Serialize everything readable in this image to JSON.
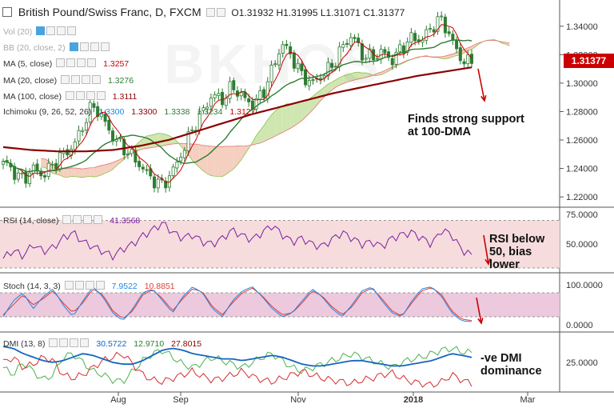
{
  "header": {
    "title": "British Pound/Swiss Franc, D, FXCM",
    "ohlc": "O1.31932  H1.31995  L1.31071  C1.31377"
  },
  "last_price": "1.31377",
  "indicators": {
    "vol": {
      "label": "Vol (20)"
    },
    "bb": {
      "label": "BB (20, close, 2)"
    },
    "ma5": {
      "label": "MA (5, close)",
      "value": "1.3257",
      "color": "#cc0000"
    },
    "ma20": {
      "label": "MA (20, close)",
      "value": "1.3276",
      "color": "#2e7d32"
    },
    "ma100": {
      "label": "MA (100, close)",
      "value": "1.3111",
      "color": "#8b0000"
    },
    "ichimoku": {
      "label": "Ichimoku (9, 26, 52, 26)",
      "v1": "1.3300",
      "v2": "1.3300",
      "v3": "1.3338",
      "v4": "1.3234",
      "v5": "1.3127"
    },
    "rsi": {
      "label": "RSI (14, close)",
      "value": "41.3568"
    },
    "stoch": {
      "label": "Stoch (14, 3, 3)",
      "k": "7.9522",
      "d": "10.8851"
    },
    "dmi": {
      "label": "DMI (13, 8)",
      "plus": "30.5722",
      "minus": "12.9710",
      "adx": "27.8015"
    }
  },
  "annotations": {
    "support": "Finds strong support at 100-DMA",
    "rsi": "RSI below 50, bias lower",
    "dmi": "-ve DMI dominance"
  },
  "watermark": "BKHOS",
  "colors": {
    "bull": "#2e7d32",
    "bear": "#2e7d32",
    "ma5": "#cc0000",
    "ma20": "#2e7d32",
    "ma100": "#8b0000",
    "cloud_green": "#cfe6b0",
    "cloud_red": "#f5cfc0",
    "rsi": "#7b1fa2",
    "stoch_k": "#1e88e5",
    "stoch_d": "#e53935",
    "dmi_plus": "#4caf50",
    "dmi_minus": "#d32f2f",
    "adx": "#1565c0",
    "arrow": "#cc0000"
  },
  "chart_data": [
    {
      "type": "candlestick",
      "title": "British Pound/Swiss Franc, D, FXCM",
      "x_ticks": [
        "Aug",
        "Sep",
        "Nov",
        "2018",
        "Mar"
      ],
      "y_ticks": [
        "1.34000",
        "1.32000",
        "1.30000",
        "1.28000",
        "1.26000",
        "1.24000",
        "1.22000"
      ],
      "ylim": [
        1.215,
        1.35
      ],
      "close_path": [
        1.245,
        1.238,
        1.232,
        1.24,
        1.235,
        1.243,
        1.25,
        1.255,
        1.27,
        1.285,
        1.275,
        1.262,
        1.255,
        1.248,
        1.24,
        1.232,
        1.228,
        1.238,
        1.252,
        1.268,
        1.28,
        1.292,
        1.288,
        1.298,
        1.29,
        1.285,
        1.292,
        1.31,
        1.328,
        1.318,
        1.305,
        1.3,
        1.306,
        1.312,
        1.325,
        1.334,
        1.32,
        1.318,
        1.322,
        1.316,
        1.325,
        1.332,
        1.33,
        1.34,
        1.345,
        1.33,
        1.316,
        1.3138
      ],
      "ma100_path": [
        1.255,
        1.253,
        1.252,
        1.252,
        1.253,
        1.256,
        1.26,
        1.266,
        1.272,
        1.278,
        1.283,
        1.288,
        1.293,
        1.297,
        1.301,
        1.305,
        1.308,
        1.3111
      ]
    },
    {
      "type": "line",
      "title": "RSI (14, close)",
      "y_ticks": [
        "75.0000",
        "50.0000"
      ],
      "ylim": [
        30,
        75
      ],
      "values": [
        38,
        45,
        40,
        50,
        44,
        47,
        55,
        60,
        52,
        48,
        44,
        40,
        46,
        50,
        57,
        62,
        68,
        60,
        55,
        58,
        52,
        50,
        55,
        62,
        57,
        54,
        60,
        66,
        58,
        52,
        55,
        50,
        48,
        54,
        60,
        55,
        50,
        52,
        48,
        55,
        58,
        60,
        55,
        50,
        62,
        58,
        45,
        41.3568
      ]
    },
    {
      "type": "line",
      "title": "Stoch (14, 3, 3)",
      "y_ticks": [
        "100.0000",
        "0.0000"
      ],
      "ylim": [
        0,
        100
      ],
      "series": [
        {
          "name": "%K",
          "values": [
            20,
            60,
            80,
            40,
            70,
            90,
            50,
            20,
            60,
            95,
            70,
            30,
            10,
            40,
            80,
            90,
            60,
            30,
            70,
            95,
            80,
            40,
            20,
            60,
            85,
            95,
            70,
            40,
            20,
            30,
            60,
            90,
            70,
            40,
            20,
            50,
            85,
            95,
            60,
            30,
            20,
            60,
            90,
            95,
            70,
            30,
            10,
            7.9522
          ]
        },
        {
          "name": "%D",
          "values": [
            25,
            50,
            75,
            50,
            65,
            85,
            55,
            30,
            55,
            90,
            75,
            35,
            15,
            35,
            75,
            88,
            65,
            35,
            65,
            90,
            82,
            45,
            25,
            55,
            80,
            92,
            72,
            45,
            25,
            30,
            55,
            85,
            72,
            45,
            25,
            45,
            80,
            92,
            65,
            35,
            22,
            55,
            85,
            93,
            75,
            35,
            14,
            10.8851
          ]
        }
      ]
    },
    {
      "type": "line",
      "title": "DMI (13, 8)",
      "y_ticks": [
        "25.0000"
      ],
      "ylim": [
        10,
        40
      ],
      "series": [
        {
          "name": "+DI",
          "values": [
            22,
            18,
            25,
            20,
            15,
            18,
            28,
            30,
            25,
            20,
            18,
            15,
            14,
            20,
            26,
            30,
            32,
            28,
            24,
            22,
            25,
            28,
            26,
            24,
            22,
            25,
            28,
            30,
            26,
            22,
            20,
            22,
            24,
            26,
            28,
            30,
            28,
            26,
            24,
            22,
            25,
            27,
            28,
            30,
            32,
            33,
            31,
            30.5722
          ]
        },
        {
          "name": "-DI",
          "values": [
            25,
            28,
            22,
            24,
            28,
            26,
            18,
            16,
            18,
            22,
            26,
            28,
            30,
            24,
            18,
            15,
            14,
            16,
            18,
            20,
            17,
            15,
            16,
            18,
            20,
            17,
            15,
            14,
            16,
            18,
            20,
            18,
            16,
            15,
            14,
            13,
            15,
            16,
            18,
            19,
            16,
            14,
            13,
            12,
            14,
            18,
            15,
            12.971
          ]
        },
        {
          "name": "ADX",
          "values": [
            34,
            33,
            30,
            28,
            26,
            25,
            26,
            28,
            30,
            29,
            27,
            25,
            24,
            24,
            26,
            29,
            32,
            33,
            32,
            30,
            29,
            28,
            27,
            27,
            26,
            27,
            28,
            29,
            28,
            26,
            24,
            23,
            23,
            24,
            25,
            26,
            26,
            25,
            24,
            23,
            23,
            24,
            25,
            26,
            28,
            30,
            29,
            27.8015
          ]
        }
      ]
    }
  ]
}
